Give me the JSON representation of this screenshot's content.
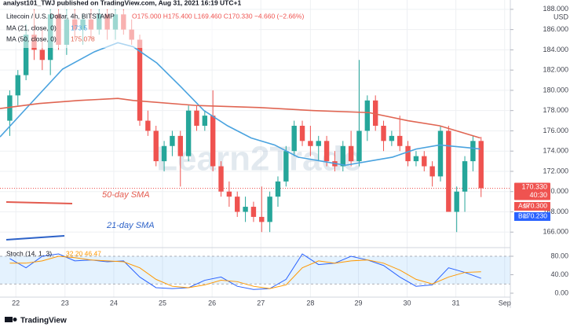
{
  "header": {
    "publisher": "analyst101_TWJ published on TradingView.com, Aug 31, 2021 16:19 UTC+1",
    "brand": "TradingView"
  },
  "chart_data": [
    {
      "type": "candlestick",
      "legend": {
        "symbol": "Litecoin / U.S. Dollar, 4h, BITSTAMP",
        "ohlc": "O175.000 H175.400 L169.460 C170.330 −4.660 (−2.66%)",
        "ma21": "MA (21, close, 0)",
        "ma21_value": "173.5",
        "ma50": "MA (50, close, 0)",
        "ma50_value": "175.078"
      },
      "watermark": "Learn2Trade",
      "annotations": [
        {
          "text": "50-day SMA",
          "color": "#e35b4f"
        },
        {
          "text": "21-day SMA",
          "color": "#2d62c8"
        }
      ],
      "y_unit": "USD",
      "price_labels": {
        "last": "170.330",
        "countdown": "40:30",
        "ask_name": "Ask",
        "ask": "170.300",
        "bid_name": "Bid",
        "bid": "170.230"
      },
      "up_color": "#26a69a",
      "down_color": "#ef5350",
      "x": [
        0,
        1,
        2,
        3,
        4,
        5,
        6,
        7,
        8,
        9,
        10,
        11,
        12,
        13,
        14,
        15,
        16,
        17,
        18,
        19,
        20,
        21,
        22,
        23,
        24,
        25,
        26,
        27,
        28,
        29,
        30,
        31,
        32,
        33,
        34,
        35,
        36,
        37,
        38,
        39,
        40,
        41,
        42,
        43,
        44,
        45,
        46,
        47,
        48,
        49,
        50,
        51,
        52,
        53,
        54,
        55,
        56,
        57,
        58
      ],
      "open": [
        177,
        179.5,
        181.5,
        185.5,
        184,
        183,
        187.5,
        184.5,
        187,
        186,
        187,
        186,
        187.5,
        186,
        187.5,
        186,
        185,
        177,
        176,
        173,
        174.5,
        175.5,
        173.5,
        178,
        176.5,
        177.5,
        172.5,
        170,
        169.5,
        168,
        168.5,
        167.5,
        167,
        169.5,
        171,
        174,
        176.5,
        175,
        174.5,
        175,
        173,
        172.5,
        174.5,
        173,
        176,
        179,
        176.5,
        175,
        175.5,
        174.5,
        173,
        173.5,
        172.5,
        171.5,
        176,
        168,
        170,
        173,
        175
      ],
      "high": [
        180,
        182,
        186.5,
        188,
        186,
        188,
        188,
        188,
        188,
        187.5,
        188,
        188,
        188,
        188,
        188,
        187,
        185.5,
        178,
        176.5,
        175,
        176,
        176,
        178.5,
        178.5,
        178,
        180,
        173,
        171,
        170,
        169.5,
        169,
        170.5,
        170,
        171.5,
        174.5,
        177,
        177,
        176.5,
        175.5,
        175.5,
        174,
        175,
        176,
        183,
        179.5,
        179.5,
        177,
        176,
        177.5,
        175,
        174,
        174,
        173,
        176.5,
        176.5,
        170.5,
        173.5,
        175.5,
        175.4
      ],
      "low": [
        175.5,
        178.5,
        181,
        183,
        182,
        181.5,
        184,
        183.5,
        185,
        184.5,
        185,
        185.5,
        185,
        185,
        185.5,
        184.5,
        176.5,
        175.5,
        172.5,
        172,
        173.5,
        170.5,
        173,
        176,
        176,
        172,
        169.5,
        168.5,
        167.5,
        167,
        167,
        166,
        166,
        168.5,
        170.5,
        173.5,
        174.5,
        173.5,
        173,
        172.5,
        172,
        172,
        172.5,
        172.5,
        175,
        176,
        174,
        174.5,
        174,
        172.5,
        172.5,
        172,
        170.5,
        171,
        168,
        166,
        168,
        172,
        169.46
      ],
      "close": [
        179.5,
        181.5,
        185.5,
        184,
        183,
        187.5,
        184.5,
        187,
        186,
        187,
        186,
        187.5,
        186,
        187.5,
        186,
        185,
        177,
        176,
        173,
        174.5,
        175.5,
        173.5,
        178,
        176.5,
        177.5,
        172.5,
        170,
        169.5,
        168,
        168.5,
        167.5,
        167,
        169.5,
        171,
        174,
        176.5,
        175,
        174.5,
        175,
        173,
        172.5,
        174.5,
        173,
        176,
        179,
        176.5,
        175,
        175.5,
        174.5,
        173,
        173.5,
        172.5,
        171.5,
        176,
        168,
        170,
        173,
        175,
        170.33
      ],
      "series": [
        {
          "name": "MA (21, close, 0)",
          "color": "#4aa3df",
          "x": [
            -1.2,
            2.7,
            6.5,
            10.4,
            13.3,
            15.2,
            18.1,
            21,
            23.9,
            26.8,
            29.7,
            32.6,
            35.5,
            38.4,
            41.3,
            44.2,
            47.1,
            50,
            52.9,
            56.8,
            57.9
          ],
          "values": [
            175.4,
            178.8,
            182.1,
            183.8,
            184.7,
            184.3,
            182.7,
            180.4,
            178,
            176.5,
            175.3,
            174.6,
            173.4,
            173,
            172.6,
            173,
            173.4,
            174.2,
            174.6,
            174.3,
            174.2
          ]
        },
        {
          "name": "MA (50, close, 0)",
          "color": "#e06552",
          "x": [
            -1.2,
            3.6,
            8.5,
            13.3,
            15.2,
            23,
            30.7,
            37.4,
            44.2,
            49,
            52.9,
            57.9
          ],
          "values": [
            178.2,
            178.7,
            179,
            179.2,
            179,
            178.5,
            178.3,
            178,
            177.8,
            177,
            176.5,
            175.3
          ]
        }
      ],
      "xlim": [
        -1.2,
        61.6
      ],
      "xticks": [
        {
          "value": 0.75,
          "label": "22"
        },
        {
          "value": 6.8,
          "label": "23"
        },
        {
          "value": 12.8,
          "label": "24"
        },
        {
          "value": 18.8,
          "label": "25"
        },
        {
          "value": 24.9,
          "label": "26"
        },
        {
          "value": 30.9,
          "label": "27"
        },
        {
          "value": 37,
          "label": "28"
        },
        {
          "value": 42.9,
          "label": "29"
        },
        {
          "value": 48.9,
          "label": "30"
        },
        {
          "value": 54.9,
          "label": "31"
        },
        {
          "value": 60.9,
          "label": "Sep"
        }
      ],
      "ylim": [
        164.7,
        188.3
      ],
      "yticks": [
        {
          "value": 166,
          "label": "166.000"
        },
        {
          "value": 168,
          "label": "168.000"
        },
        {
          "value": 170,
          "label": "170.000"
        },
        {
          "value": 172,
          "label": "172.000"
        },
        {
          "value": 174,
          "label": "174.000"
        },
        {
          "value": 176,
          "label": "176.000"
        },
        {
          "value": 178,
          "label": "178.000"
        },
        {
          "value": 180,
          "label": "180.000"
        },
        {
          "value": 182,
          "label": "182.000"
        },
        {
          "value": 184,
          "label": "184.000"
        },
        {
          "value": 186,
          "label": "186.000"
        },
        {
          "value": 188,
          "label": "188.000"
        }
      ],
      "grid": true
    },
    {
      "type": "line",
      "title": "Stoch (14, 1, 3)",
      "title_values": "32.20 46.47",
      "band": [
        20,
        80
      ],
      "band_color": "#2196f3",
      "x": [
        0,
        2,
        4,
        6,
        8,
        10,
        12,
        14,
        16,
        18,
        20,
        22,
        24,
        26,
        28,
        30,
        32,
        34,
        36,
        38,
        40,
        42,
        44,
        46,
        48,
        50,
        52,
        54,
        56,
        58
      ],
      "series": [
        {
          "name": "%K",
          "color": "#2962ff",
          "values": [
            75,
            55,
            80,
            85,
            70,
            72,
            68,
            70,
            35,
            12,
            10,
            12,
            28,
            35,
            15,
            8,
            10,
            30,
            85,
            62,
            65,
            80,
            72,
            60,
            35,
            15,
            18,
            55,
            45,
            32.2
          ]
        },
        {
          "name": "%D",
          "color": "#ff9800",
          "values": [
            65,
            65,
            70,
            80,
            77,
            72,
            70,
            68,
            55,
            30,
            15,
            12,
            18,
            28,
            25,
            15,
            10,
            18,
            55,
            70,
            65,
            70,
            72,
            65,
            50,
            30,
            20,
            35,
            45,
            46.47
          ]
        }
      ],
      "xlim": [
        -1.2,
        61.6
      ],
      "ylim": [
        -8.5,
        93.6
      ],
      "yticks": [
        {
          "value": 0,
          "label": "0.00"
        },
        {
          "value": 40,
          "label": "40.00"
        },
        {
          "value": 80,
          "label": "80.00"
        }
      ]
    }
  ]
}
